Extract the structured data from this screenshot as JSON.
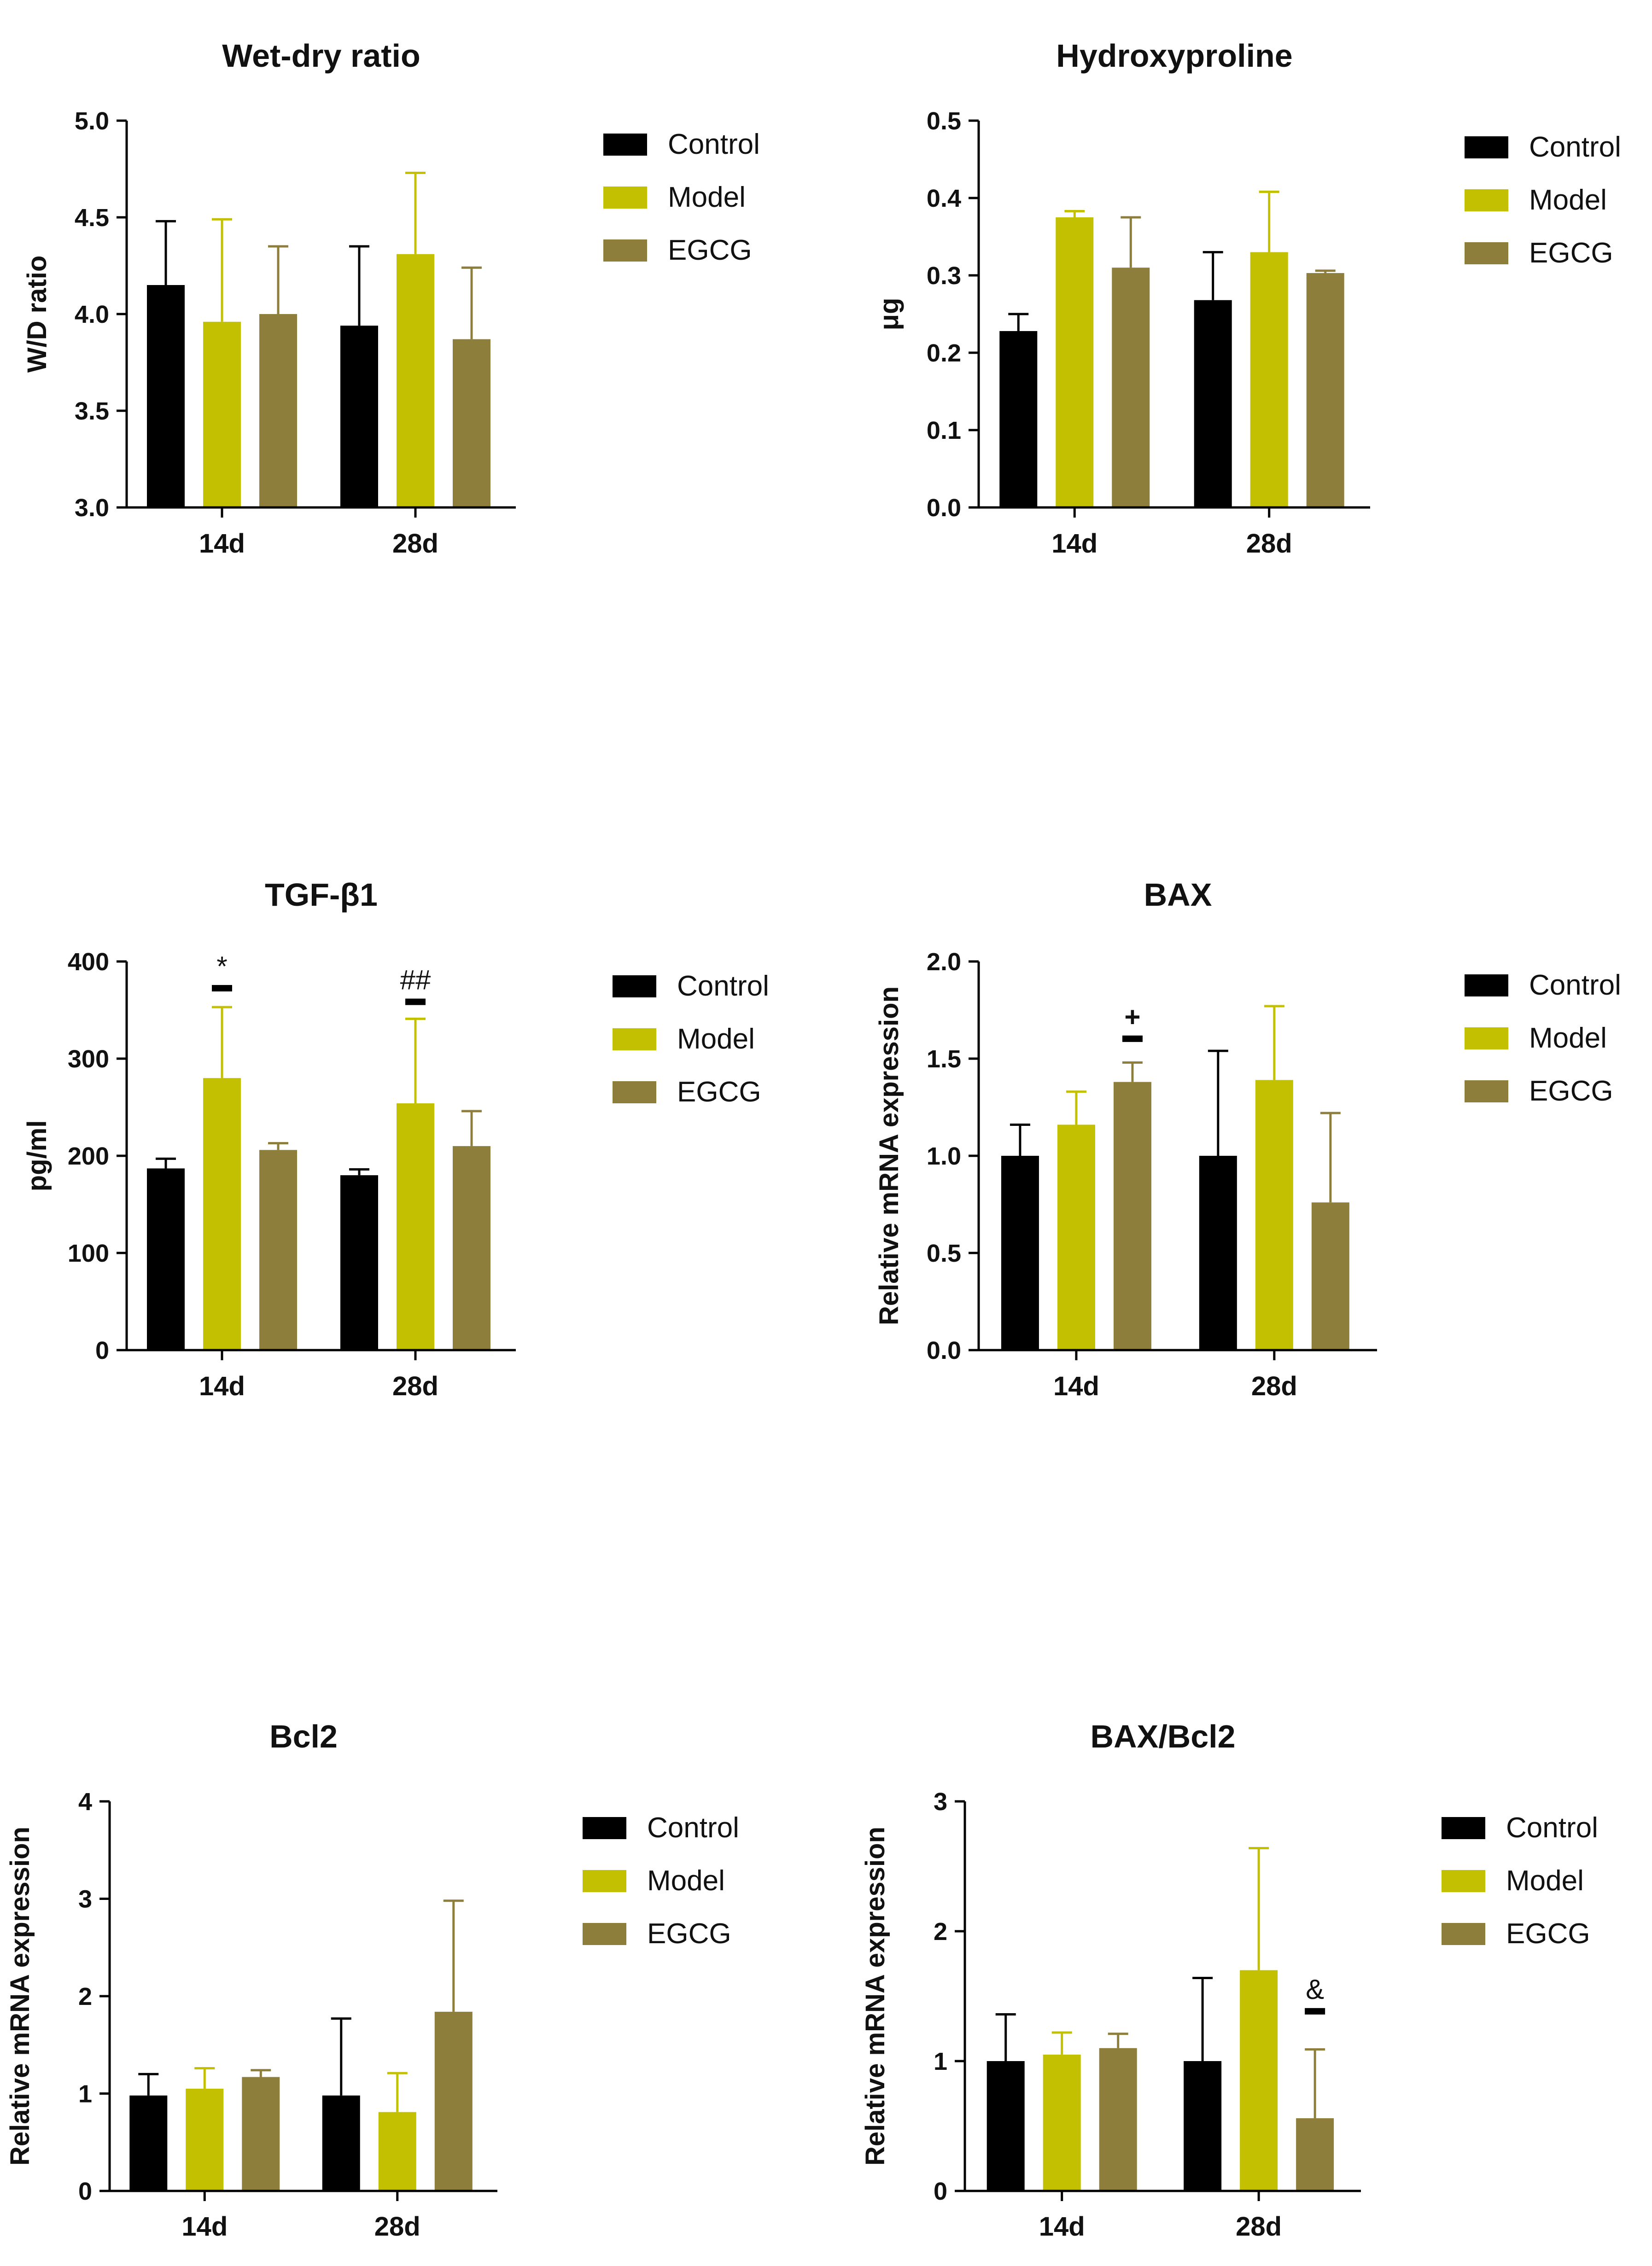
{
  "colors": {
    "Control": "#000000",
    "Model": "#c2c000",
    "EGCG": "#8e7e3c"
  },
  "chart_data": [
    {
      "type": "bar",
      "title": "Wet-dry ratio",
      "ylabel": "W/D ratio",
      "categories": [
        "14d",
        "28d"
      ],
      "ylim": [
        3.0,
        5.0
      ],
      "yticks": [
        "3.0",
        "3.5",
        "4.0",
        "4.5",
        "5.0"
      ],
      "series": [
        {
          "name": "Control",
          "values": [
            4.15,
            3.94
          ],
          "errors": [
            0.33,
            0.41
          ]
        },
        {
          "name": "Model",
          "values": [
            3.96,
            4.31
          ],
          "errors": [
            0.53,
            0.42
          ]
        },
        {
          "name": "EGCG",
          "values": [
            4.0,
            3.87
          ],
          "errors": [
            0.35,
            0.37
          ]
        }
      ],
      "annotations": [],
      "legend": [
        "Control",
        "Model",
        "EGCG"
      ]
    },
    {
      "type": "bar",
      "title": "Hydroxyproline",
      "ylabel": "μg",
      "categories": [
        "14d",
        "28d"
      ],
      "ylim": [
        0.0,
        0.5
      ],
      "yticks": [
        "0.0",
        "0.1",
        "0.2",
        "0.3",
        "0.4",
        "0.5"
      ],
      "series": [
        {
          "name": "Control",
          "values": [
            0.228,
            0.268
          ],
          "errors": [
            0.022,
            0.062
          ]
        },
        {
          "name": "Model",
          "values": [
            0.375,
            0.33
          ],
          "errors": [
            0.008,
            0.078
          ]
        },
        {
          "name": "EGCG",
          "values": [
            0.31,
            0.303
          ],
          "errors": [
            0.065,
            0.003
          ]
        }
      ],
      "annotations": [],
      "legend": [
        "Control",
        "Model",
        "EGCG"
      ]
    },
    {
      "type": "bar",
      "title": "TGF-β1",
      "ylabel": "pg/ml",
      "categories": [
        "14d",
        "28d"
      ],
      "ylim": [
        0,
        400
      ],
      "yticks": [
        "0",
        "100",
        "200",
        "300",
        "400"
      ],
      "series": [
        {
          "name": "Control",
          "values": [
            187,
            180
          ],
          "errors": [
            10,
            6
          ]
        },
        {
          "name": "Model",
          "values": [
            280,
            254
          ],
          "errors": [
            73,
            87
          ]
        },
        {
          "name": "EGCG",
          "values": [
            206,
            210
          ],
          "errors": [
            7,
            36
          ]
        }
      ],
      "annotations": [
        {
          "text": "*",
          "category": 0,
          "series": 1,
          "y": 372
        },
        {
          "text": "##",
          "category": 1,
          "series": 1,
          "y": 358
        }
      ],
      "legend": [
        "Control",
        "Model",
        "EGCG"
      ]
    },
    {
      "type": "bar",
      "title": "BAX",
      "ylabel": "Relative mRNA expression",
      "categories": [
        "14d",
        "28d"
      ],
      "ylim": [
        0.0,
        2.0
      ],
      "yticks": [
        "0.0",
        "0.5",
        "1.0",
        "1.5",
        "2.0"
      ],
      "series": [
        {
          "name": "Control",
          "values": [
            1.0,
            1.0
          ],
          "errors": [
            0.16,
            0.54
          ]
        },
        {
          "name": "Model",
          "values": [
            1.16,
            1.39
          ],
          "errors": [
            0.17,
            0.38
          ]
        },
        {
          "name": "EGCG",
          "values": [
            1.38,
            0.76
          ],
          "errors": [
            0.1,
            0.46
          ]
        }
      ],
      "annotations": [
        {
          "text": "+",
          "category": 0,
          "series": 2,
          "y": 1.6
        }
      ],
      "legend": [
        "Control",
        "Model",
        "EGCG"
      ]
    },
    {
      "type": "bar",
      "title": "Bcl2",
      "ylabel": "Relative mRNA expression",
      "categories": [
        "14d",
        "28d"
      ],
      "ylim": [
        0,
        4
      ],
      "yticks": [
        "0",
        "1",
        "2",
        "3",
        "4"
      ],
      "series": [
        {
          "name": "Control",
          "values": [
            0.98,
            0.98
          ],
          "errors": [
            0.22,
            0.79
          ]
        },
        {
          "name": "Model",
          "values": [
            1.05,
            0.81
          ],
          "errors": [
            0.21,
            0.4
          ]
        },
        {
          "name": "EGCG",
          "values": [
            1.17,
            1.84
          ],
          "errors": [
            0.07,
            1.14
          ]
        }
      ],
      "annotations": [],
      "legend": [
        "Control",
        "Model",
        "EGCG"
      ]
    },
    {
      "type": "bar",
      "title": "BAX/Bcl2",
      "ylabel": "Relative mRNA expression",
      "categories": [
        "14d",
        "28d"
      ],
      "ylim": [
        0,
        3
      ],
      "yticks": [
        "0",
        "1",
        "2",
        "3"
      ],
      "series": [
        {
          "name": "Control",
          "values": [
            1.0,
            1.0
          ],
          "errors": [
            0.36,
            0.64
          ]
        },
        {
          "name": "Model",
          "values": [
            1.05,
            1.7
          ],
          "errors": [
            0.17,
            0.94
          ]
        },
        {
          "name": "EGCG",
          "values": [
            1.1,
            0.56
          ],
          "errors": [
            0.11,
            0.53
          ]
        }
      ],
      "annotations": [
        {
          "text": "&",
          "category": 1,
          "series": 2,
          "y": 1.38
        }
      ],
      "legend": [
        "Control",
        "Model",
        "EGCG"
      ]
    }
  ]
}
